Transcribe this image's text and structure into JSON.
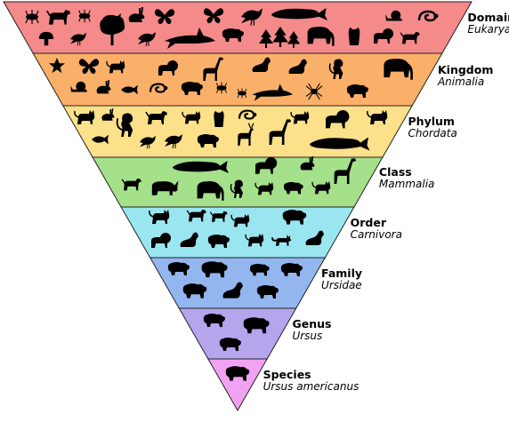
{
  "diagram": {
    "levels": [
      {
        "rank": "Domain",
        "taxon": "Eukarya",
        "color": "#f58a8a",
        "silhouettes": [
          "animal-silhouette-icon",
          "insect-silhouette-icon",
          "fish-silhouette-icon",
          "rabbit-silhouette-icon",
          "butterfly-silhouette-icon",
          "bird-silhouette-icon",
          "whale-silhouette-icon",
          "snail-silhouette-icon",
          "snake-silhouette-icon",
          "mushroom-silhouette-icon",
          "tree-silhouette-icon",
          "shark-silhouette-icon",
          "bear-silhouette-icon",
          "conifer-silhouette-icon",
          "elephant-silhouette-icon",
          "owl-silhouette-icon",
          "lion-silhouette-icon",
          "dog-silhouette-icon"
        ]
      },
      {
        "rank": "Kingdom",
        "taxon": "Animalia",
        "color": "#fbb06a",
        "silhouettes": [
          "starfish-silhouette-icon",
          "butterfly-silhouette-icon",
          "cat-silhouette-icon",
          "lion-silhouette-icon",
          "giraffe-silhouette-icon",
          "seal-silhouette-icon",
          "monkey-silhouette-icon",
          "elephant-silhouette-icon",
          "snail-silhouette-icon",
          "rabbit-silhouette-icon",
          "fish-silhouette-icon",
          "snake-silhouette-icon",
          "bear-silhouette-icon",
          "insect-silhouette-icon",
          "shark-silhouette-icon",
          "spider-silhouette-icon",
          "dog-silhouette-icon"
        ]
      },
      {
        "rank": "Phylum",
        "taxon": "Chordata",
        "color": "#fde08a",
        "silhouettes": [
          "cat-silhouette-icon",
          "rabbit-silhouette-icon",
          "monkey-silhouette-icon",
          "dog-silhouette-icon",
          "owl-silhouette-icon",
          "snake-silhouette-icon",
          "lion-silhouette-icon",
          "fish-silhouette-icon",
          "bird-silhouette-icon",
          "bear-silhouette-icon",
          "deer-silhouette-icon",
          "giraffe-silhouette-icon",
          "whale-silhouette-icon"
        ]
      },
      {
        "rank": "Class",
        "taxon": "Mammalia",
        "color": "#a5e08a",
        "silhouettes": [
          "whale-silhouette-icon",
          "lion-silhouette-icon",
          "rabbit-silhouette-icon",
          "giraffe-silhouette-icon",
          "dog-silhouette-icon",
          "rhino-silhouette-icon",
          "elephant-silhouette-icon",
          "monkey-silhouette-icon",
          "cat-silhouette-icon",
          "bear-silhouette-icon"
        ]
      },
      {
        "rank": "Order",
        "taxon": "Carnivora",
        "color": "#9ae6f0",
        "silhouettes": [
          "cat-silhouette-icon",
          "dog-silhouette-icon",
          "bear-silhouette-icon",
          "lion-silhouette-icon",
          "seal-silhouette-icon",
          "fox-silhouette-icon",
          "wolf-silhouette-icon",
          "otter-silhouette-icon"
        ]
      },
      {
        "rank": "Family",
        "taxon": "Ursidae",
        "color": "#93b6ef",
        "silhouettes": [
          "bear-silhouette-icon",
          "polar-bear-silhouette-icon",
          "panda-silhouette-icon",
          "sun-bear-silhouette-icon"
        ]
      },
      {
        "rank": "Genus",
        "taxon": "Ursus",
        "color": "#b6a4ed",
        "silhouettes": [
          "bear-silhouette-icon",
          "brown-bear-silhouette-icon",
          "black-bear-silhouette-icon"
        ]
      },
      {
        "rank": "Species",
        "taxon": "Ursus americanus",
        "color": "#f2a2f2",
        "silhouettes": [
          "black-bear-silhouette-icon"
        ]
      }
    ]
  }
}
